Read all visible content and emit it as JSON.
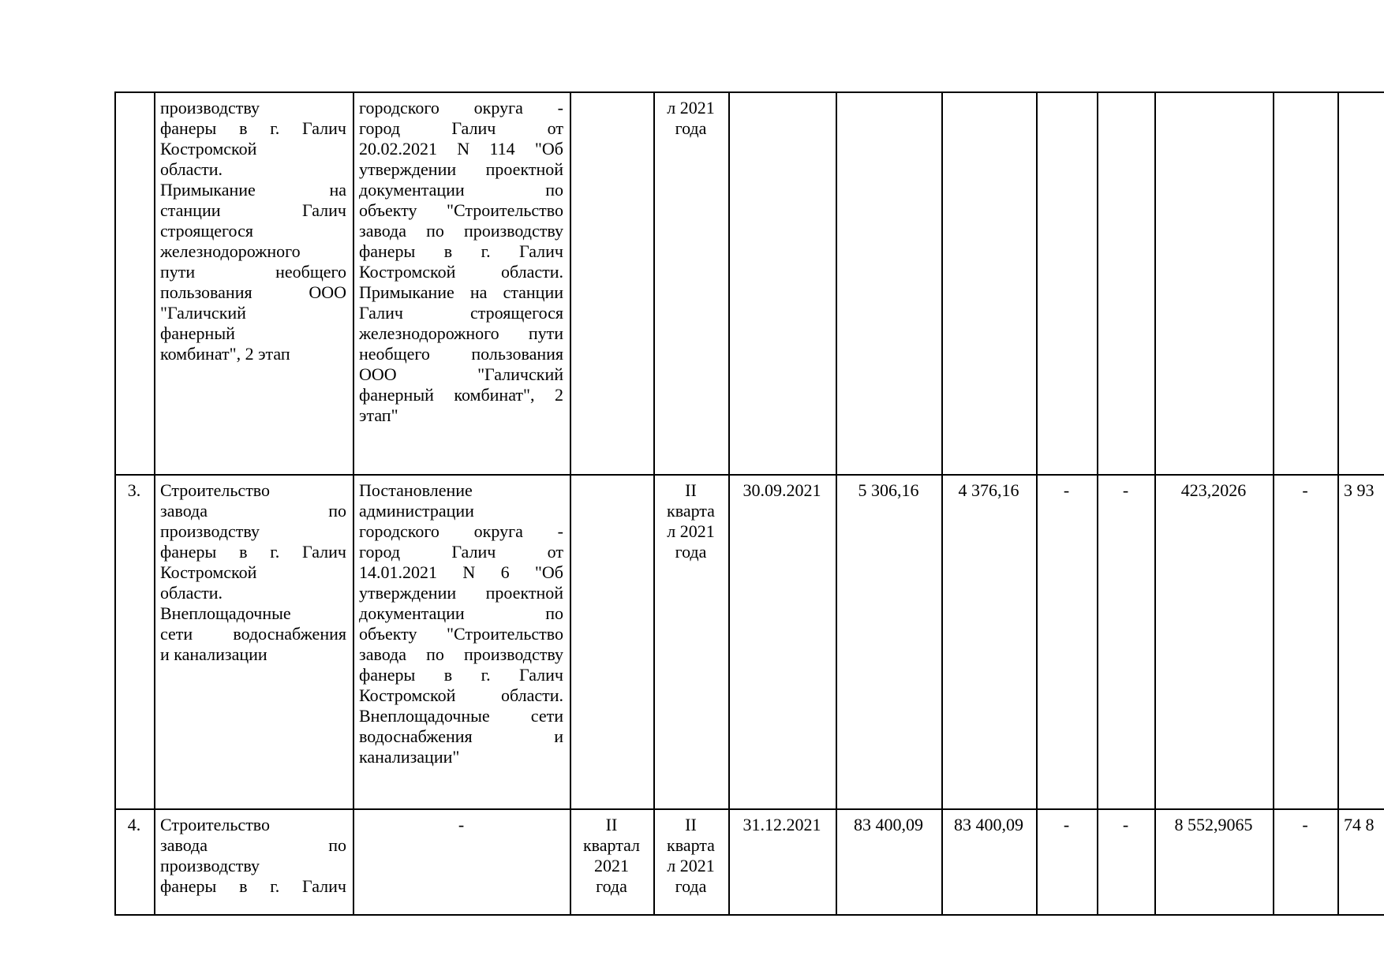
{
  "document": {
    "language": "ru",
    "page_background": "#ffffff",
    "description_fragment_values": {
      "row3_last_visible_fragment": "3 93",
      "row4_last_visible_fragment": "74 8"
    }
  },
  "table": {
    "rows": [
      {
        "name": "row-2-continuation",
        "cells": [
          {
            "col": "row-number",
            "text": ""
          },
          {
            "col": "object-name",
            "align": "justify",
            "stretch_last": false,
            "lines": [
              "производству",
              "фанеры в г. Галич",
              "Костромской",
              "области.",
              "Примыкание на",
              "станции Галич",
              "строящегося",
              "железнодорожного",
              "пути необщего",
              "пользования ООО",
              "\"Галичский",
              "фанерный",
              "комбинат\", 2 этап"
            ]
          },
          {
            "col": "approval-document",
            "align": "justify",
            "stretch_last": false,
            "lines": [
              "городского округа -",
              "город Галич от",
              "20.02.2021 N 114 \"Об",
              "утверждении проектной",
              "документации по",
              "объекту \"Строительство",
              "завода по производству",
              "фанеры в г. Галич",
              "Костромской области.",
              "Примыкание на станции",
              "Галич строящегося",
              "железнодорожного пути",
              "необщего пользования",
              "ООО \"Галичский",
              "фанерный комбинат\", 2",
              "этап\""
            ]
          },
          {
            "col": "quarter-plan",
            "text": ""
          },
          {
            "col": "quarter-actual",
            "align": "center",
            "lines": [
              "л 2021",
              "года"
            ]
          },
          {
            "col": "completion-date",
            "text": ""
          },
          {
            "col": "amount-1",
            "text": ""
          },
          {
            "col": "amount-2",
            "text": ""
          },
          {
            "col": "dash-1",
            "text": ""
          },
          {
            "col": "dash-2",
            "text": ""
          },
          {
            "col": "amount-3",
            "text": ""
          },
          {
            "col": "dash-3",
            "text": ""
          },
          {
            "col": "amount-4",
            "text": ""
          }
        ]
      },
      {
        "name": "row-3",
        "cells": [
          {
            "col": "row-number",
            "text": "3."
          },
          {
            "col": "object-name",
            "align": "justify",
            "stretch_last": false,
            "lines": [
              "Строительство",
              "завода по",
              "производству",
              "фанеры в г. Галич",
              "Костромской",
              "области.",
              "Внеплощадочные",
              "сети водоснабжения",
              "и канализации"
            ]
          },
          {
            "col": "approval-document",
            "align": "justify",
            "stretch_last": false,
            "lines": [
              "Постановление",
              "администрации",
              "городского округа -",
              "город Галич от",
              "14.01.2021 N 6 \"Об",
              "утверждении проектной",
              "документации по",
              "объекту \"Строительство",
              "завода по производству",
              "фанеры в г. Галич",
              "Костромской области.",
              "Внеплощадочные сети",
              "водоснабжения и",
              "канализации\""
            ]
          },
          {
            "col": "quarter-plan",
            "text": ""
          },
          {
            "col": "quarter-actual",
            "align": "center",
            "lines": [
              "II",
              "кварта",
              "л 2021",
              "года"
            ]
          },
          {
            "col": "completion-date",
            "text": "30.09.2021"
          },
          {
            "col": "amount-1",
            "text": "5 306,16"
          },
          {
            "col": "amount-2",
            "text": "4 376,16"
          },
          {
            "col": "dash-1",
            "text": "-"
          },
          {
            "col": "dash-2",
            "text": "-"
          },
          {
            "col": "amount-3",
            "text": "423,2026"
          },
          {
            "col": "dash-3",
            "text": "-"
          },
          {
            "col": "amount-4",
            "text": "3 93"
          }
        ]
      },
      {
        "name": "row-4",
        "cells": [
          {
            "col": "row-number",
            "text": "4."
          },
          {
            "col": "object-name",
            "align": "justify",
            "stretch_last": true,
            "lines": [
              "Строительство",
              "завода по",
              "производству",
              "фанеры в г. Галич"
            ]
          },
          {
            "col": "approval-document",
            "text": "-"
          },
          {
            "col": "quarter-plan",
            "align": "center",
            "lines": [
              "II",
              "квартал",
              "2021",
              "года"
            ]
          },
          {
            "col": "quarter-actual",
            "align": "center",
            "lines": [
              "II",
              "кварта",
              "л 2021",
              "года"
            ]
          },
          {
            "col": "completion-date",
            "text": "31.12.2021"
          },
          {
            "col": "amount-1",
            "text": "83 400,09"
          },
          {
            "col": "amount-2",
            "text": "83 400,09"
          },
          {
            "col": "dash-1",
            "text": "-"
          },
          {
            "col": "dash-2",
            "text": "-"
          },
          {
            "col": "amount-3",
            "text": "8 552,9065"
          },
          {
            "col": "dash-3",
            "text": "-"
          },
          {
            "col": "amount-4",
            "text": "74 8"
          }
        ]
      }
    ]
  }
}
